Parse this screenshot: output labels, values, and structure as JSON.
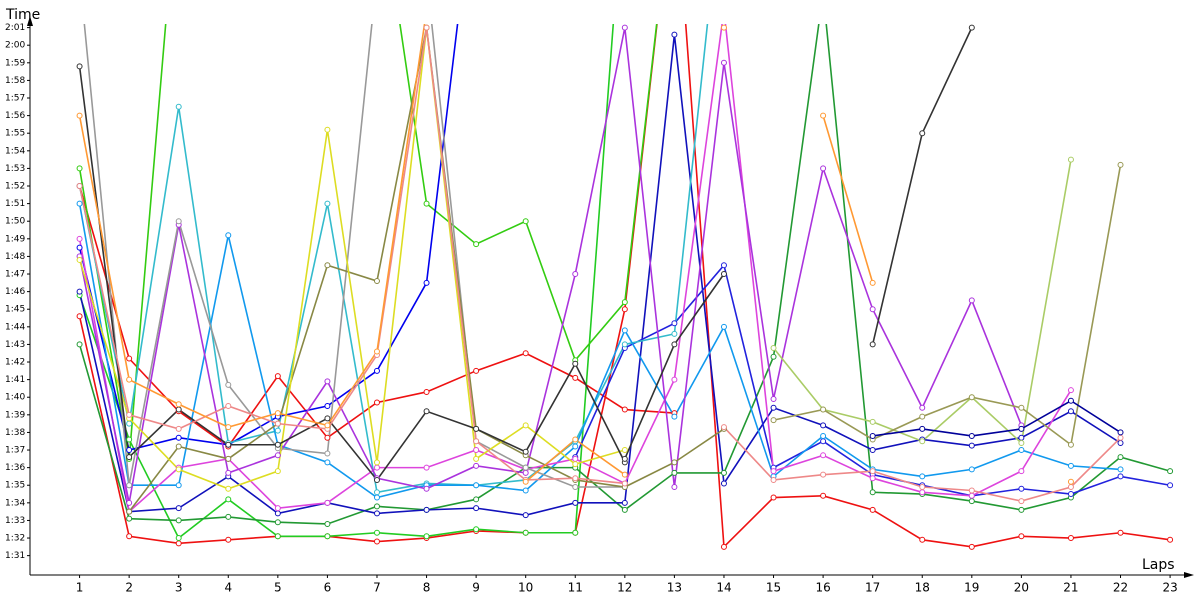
{
  "chart_data": {
    "type": "line",
    "y_label": "Time",
    "x_label": "Laps",
    "x": [
      1,
      2,
      3,
      4,
      5,
      6,
      7,
      8,
      9,
      10,
      11,
      12,
      13,
      14,
      15,
      16,
      17,
      18,
      19,
      20,
      21,
      22,
      23
    ],
    "xlim": [
      0,
      23.2
    ],
    "xticks": [
      1,
      2,
      3,
      4,
      5,
      6,
      7,
      8,
      9,
      10,
      11,
      12,
      13,
      14,
      15,
      16,
      17,
      18,
      19,
      20,
      21,
      22,
      23
    ],
    "ylim": [
      89.9,
      122
    ],
    "yticks": [
      {
        "value": 91,
        "label": "1:31"
      },
      {
        "value": 92,
        "label": "1:32"
      },
      {
        "value": 93,
        "label": "1:33"
      },
      {
        "value": 94,
        "label": "1:34"
      },
      {
        "value": 95,
        "label": "1:35"
      },
      {
        "value": 96,
        "label": "1:36"
      },
      {
        "value": 97,
        "label": "1:37"
      },
      {
        "value": 98,
        "label": "1:38"
      },
      {
        "value": 99,
        "label": "1:39"
      },
      {
        "value": 100,
        "label": "1:40"
      },
      {
        "value": 101,
        "label": "1:41"
      },
      {
        "value": 102,
        "label": "1:42"
      },
      {
        "value": 103,
        "label": "1:43"
      },
      {
        "value": 104,
        "label": "1:44"
      },
      {
        "value": 105,
        "label": "1:45"
      },
      {
        "value": 106,
        "label": "1:46"
      },
      {
        "value": 107,
        "label": "1:47"
      },
      {
        "value": 108,
        "label": "1:48"
      },
      {
        "value": 109,
        "label": "1:49"
      },
      {
        "value": 110,
        "label": "1:50"
      },
      {
        "value": 111,
        "label": "1:51"
      },
      {
        "value": 112,
        "label": "1:52"
      },
      {
        "value": 113,
        "label": "1:53"
      },
      {
        "value": 114,
        "label": "1:54"
      },
      {
        "value": 115,
        "label": "1:55"
      },
      {
        "value": 116,
        "label": "1:56"
      },
      {
        "value": 117,
        "label": "1:57"
      },
      {
        "value": 118,
        "label": "1:58"
      },
      {
        "value": 119,
        "label": "1:59"
      },
      {
        "value": 120,
        "label": "2:00"
      },
      {
        "value": 121,
        "label": "2:01"
      }
    ],
    "grid": false,
    "series": [
      {
        "color": "#ee1111",
        "values": [
          104.6,
          92.1,
          91.7,
          91.9,
          92.1,
          92.1,
          91.8,
          92.0,
          92.4,
          92.3,
          92.3,
          105,
          130,
          91.5,
          94.3,
          94.4,
          93.6,
          91.9,
          91.5,
          92.1,
          92.0,
          92.3,
          91.9
        ]
      },
      {
        "color": "#ee1111",
        "values": [
          112,
          102.2,
          99.2,
          97.2,
          101.2,
          97.7,
          99.7,
          100.3,
          101.5,
          102.5,
          101.1,
          99.3,
          99.1,
          null,
          null,
          null,
          null,
          null,
          null,
          null,
          null,
          null,
          null
        ]
      },
      {
        "color": "#22cc22",
        "values": [
          105.8,
          97.6,
          92.0,
          94.2,
          92.1,
          92.1,
          92.3,
          92.1,
          92.5,
          92.3,
          92.3,
          130,
          null,
          null,
          null,
          null,
          null,
          null,
          null,
          null,
          null,
          null,
          null
        ]
      },
      {
        "color": "#229933",
        "values": [
          103,
          93.1,
          93.0,
          93.2,
          92.9,
          92.8,
          93.8,
          93.6,
          94.2,
          96.0,
          96.0,
          93.6,
          95.7,
          95.7,
          102.3,
          123,
          94.6,
          94.5,
          94.1,
          93.6,
          94.3,
          96.6,
          95.8
        ]
      },
      {
        "color": "#33cc11",
        "values": [
          113,
          96.5,
          130,
          null,
          null,
          null,
          null,
          null,
          null,
          null,
          null,
          null,
          null,
          null,
          null,
          null,
          null,
          null,
          null,
          null,
          null,
          null,
          null
        ]
      },
      {
        "color": "#33cc11",
        "values": [
          null,
          null,
          null,
          null,
          null,
          null,
          130,
          111,
          108.7,
          110,
          102.1,
          105.4,
          130,
          null,
          null,
          null,
          null,
          null,
          null,
          null,
          null,
          null,
          null
        ]
      },
      {
        "color": "#1111bb",
        "values": [
          106,
          93.5,
          93.7,
          95.5,
          93.4,
          94.0,
          93.4,
          93.6,
          93.7,
          93.3,
          94.0,
          94.0,
          120.6,
          95.1,
          99.4,
          98.4,
          97.0,
          97.6,
          97.25,
          97.7,
          99.2,
          97.4,
          null
        ]
      },
      {
        "color": "#0000ee",
        "values": [
          108.5,
          97.0,
          97.7,
          97.3,
          98.9,
          99.5,
          101.5,
          106.5,
          130,
          null,
          null,
          null,
          null,
          null,
          null,
          null,
          null,
          null,
          null,
          null,
          null,
          null,
          null
        ]
      },
      {
        "color": "#2222dd",
        "values": [
          null,
          null,
          null,
          null,
          null,
          null,
          null,
          null,
          null,
          null,
          96.6,
          102.8,
          104.2,
          107.5,
          96.0,
          97.5,
          95.6,
          95.0,
          94.4,
          94.8,
          94.5,
          95.5,
          95.0
        ]
      },
      {
        "color": "#33bbcc",
        "values": [
          112,
          98.5,
          116.5,
          97.4,
          98.1,
          111,
          94.6,
          95.1,
          95.0,
          95.3,
          97.5,
          103,
          103.6,
          130,
          null,
          null,
          null,
          null,
          null,
          null,
          null,
          null,
          null
        ]
      },
      {
        "color": "#1199ee",
        "values": [
          111,
          95.0,
          95.0,
          109.2,
          97.3,
          96.3,
          94.3,
          95.0,
          95.0,
          94.7,
          97.2,
          103.8,
          98.9,
          104,
          95.5,
          97.8,
          95.9,
          95.5,
          95.9,
          97.0,
          96.1,
          95.9,
          null
        ]
      },
      {
        "color": "#dd44dd",
        "values": [
          109,
          93.5,
          96.0,
          96.5,
          93.7,
          94.0,
          96.0,
          96.0,
          97.0,
          95.9,
          96.5,
          95.1,
          101,
          122,
          95.8,
          96.7,
          95.4,
          94.6,
          94.4,
          95.8,
          100.4,
          null,
          null
        ]
      },
      {
        "color": "#aa33dd",
        "values": [
          108,
          94.0,
          109.8,
          95.7,
          96.7,
          100.9,
          95.4,
          94.8,
          96.1,
          95.7,
          107,
          121,
          94.9,
          119,
          99.9,
          113,
          105,
          99.4,
          105.5,
          98.4,
          null,
          null,
          null
        ]
      },
      {
        "color": "#999999",
        "values": [
          124,
          95.0,
          110,
          100.7,
          97.1,
          96.8,
          124,
          124,
          97.5,
          96.0,
          94.9,
          94.9,
          null,
          null,
          null,
          null,
          null,
          null,
          null,
          null,
          null,
          null,
          null
        ]
      },
      {
        "color": "#888844",
        "values": [
          null,
          93.5,
          97.2,
          96.5,
          98.5,
          107.5,
          106.6,
          121,
          98.2,
          96.7,
          95.3,
          94.9,
          96.3,
          98.2,
          null,
          null,
          null,
          null,
          null,
          null,
          null,
          null,
          null
        ]
      },
      {
        "color": "#dddd22",
        "values": [
          107.8,
          98.8,
          95.9,
          94.8,
          95.8,
          115.2,
          96.3,
          121,
          96.5,
          98.4,
          96.2,
          97.0,
          null,
          null,
          null,
          null,
          null,
          null,
          null,
          null,
          null,
          null,
          null
        ]
      },
      {
        "color": "#333333",
        "values": [
          118.8,
          96.6,
          99.3,
          97.3,
          97.3,
          98.8,
          95.3,
          99.2,
          98.2,
          96.9,
          101.9,
          96.3,
          null,
          null,
          null,
          null,
          null,
          null,
          null,
          null,
          null,
          null,
          null
        ]
      },
      {
        "color": "#333333",
        "values": [
          null,
          null,
          null,
          null,
          null,
          null,
          null,
          null,
          null,
          null,
          null,
          96.5,
          103,
          107,
          null,
          null,
          103,
          115,
          121,
          null,
          null,
          null,
          null
        ]
      },
      {
        "color": "#aacc66",
        "values": [
          null,
          null,
          null,
          null,
          null,
          null,
          null,
          null,
          null,
          null,
          null,
          null,
          null,
          null,
          102.8,
          99.3,
          98.6,
          97.5,
          100.0,
          97.4,
          113.5,
          null,
          null
        ]
      },
      {
        "color": "#999955",
        "values": [
          null,
          null,
          null,
          null,
          null,
          null,
          null,
          null,
          null,
          null,
          null,
          null,
          null,
          null,
          98.7,
          99.3,
          97.6,
          98.9,
          100.0,
          99.4,
          97.3,
          113.2,
          null
        ]
      },
      {
        "color": "#ee8888",
        "values": [
          112,
          99.0,
          98.2,
          99.5,
          98.5,
          98.2,
          102.4,
          121,
          97.5,
          95.3,
          95.4,
          95.1,
          null,
          98.3,
          95.3,
          95.6,
          95.8,
          94.9,
          94.7,
          94.1,
          94.9,
          97.7,
          null
        ]
      },
      {
        "color": "#ff9933",
        "values": [
          116,
          101,
          99.6,
          98.3,
          99.1,
          98.4,
          102.6,
          122,
          null,
          95.2,
          97.6,
          95.6,
          null,
          121,
          null,
          116,
          106.5,
          null,
          null,
          null,
          95.2,
          null,
          null
        ]
      },
      {
        "color": "#000099",
        "values": [
          null,
          null,
          null,
          null,
          null,
          null,
          null,
          null,
          null,
          null,
          null,
          null,
          null,
          null,
          null,
          null,
          97.8,
          98.2,
          97.8,
          98.2,
          99.8,
          98.0,
          null
        ]
      }
    ]
  }
}
